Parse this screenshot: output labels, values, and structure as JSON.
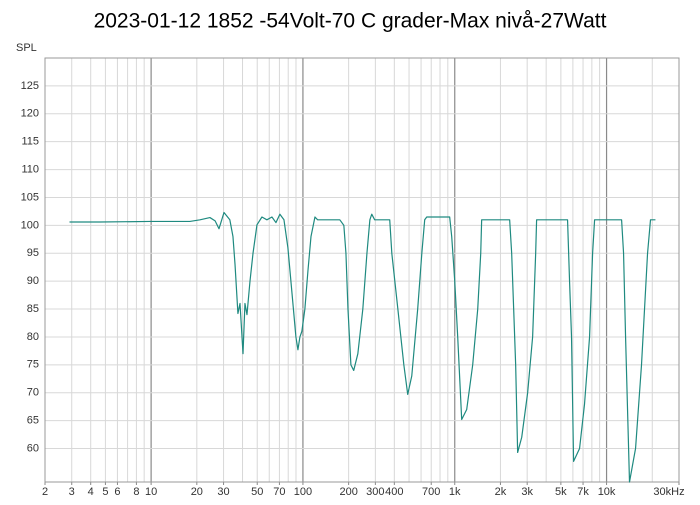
{
  "chart_data": {
    "type": "line",
    "title": "2023-01-12 1852 -54Volt-70 C grader-Max nivå-27Watt",
    "y_label": "SPL",
    "log_x": true,
    "grid": true,
    "xlim": [
      2,
      30000
    ],
    "ylim": [
      54,
      130
    ],
    "xticks": [
      2,
      3,
      4,
      5,
      6,
      8,
      10,
      20,
      30,
      50,
      70,
      100,
      200,
      300,
      400,
      700,
      {
        "value": 1000,
        "label": "1k"
      },
      {
        "value": 2000,
        "label": "2k"
      },
      {
        "value": 3000,
        "label": "3k"
      },
      {
        "value": 5000,
        "label": "5k"
      },
      {
        "value": 7000,
        "label": "7k"
      },
      {
        "value": 10000,
        "label": "10k"
      },
      {
        "value": 30000,
        "label": "30kHz"
      }
    ],
    "yticks": [
      60,
      65,
      70,
      75,
      80,
      85,
      90,
      95,
      100,
      105,
      110,
      115,
      120,
      125
    ],
    "x": [
      2.9,
      4.6,
      9.8,
      18,
      21,
      24.4,
      26.4,
      28,
      30.2,
      33,
      34.6,
      35.7,
      37.3,
      38.5,
      40.3,
      41.5,
      42.8,
      44.8,
      46.9,
      49.8,
      53.7,
      57.9,
      62.5,
      66.4,
      70.5,
      75,
      79.6,
      84.6,
      89.9,
      92.7,
      95.5,
      98.4,
      103,
      108,
      113,
      120,
      125,
      150,
      175,
      186,
      192,
      198,
      207,
      216,
      230,
      248,
      264,
      276,
      284,
      297,
      373,
      385,
      422,
      462,
      490,
      521,
      570,
      607,
      634,
      654,
      926,
      955,
      1000,
      1046,
      1111,
      1199,
      1313,
      1417,
      1483,
      1504,
      2300,
      2371,
      2444,
      2519,
      2596,
      2761,
      3021,
      3258,
      3412,
      3461,
      5534,
      5704,
      5877,
      6064,
      6639,
      7160,
      7727,
      8091,
      8339,
      12560,
      12940,
      13340,
      14160,
      15520,
      16990,
      18620,
      19470,
      20990
    ],
    "series": [
      {
        "name": "SPL",
        "color": "#1f8a80",
        "values": [
          100.6,
          100.6,
          100.7,
          100.7,
          101,
          101.4,
          100.8,
          99.4,
          102.3,
          101,
          98,
          93,
          84.2,
          86,
          77,
          86,
          84,
          90,
          95,
          100.1,
          101.5,
          101,
          101.5,
          100.5,
          102,
          101,
          96,
          88,
          80,
          77.7,
          80,
          81,
          85,
          92,
          98,
          101.5,
          101,
          101,
          101,
          100,
          95,
          85,
          75,
          74,
          77,
          85,
          95,
          101,
          102,
          101,
          101,
          95,
          85,
          75,
          69.7,
          73,
          85,
          95,
          101,
          101.5,
          101.5,
          98,
          90,
          80,
          65.2,
          67,
          75,
          85,
          95,
          101,
          101,
          95,
          85,
          75,
          59.3,
          62,
          70,
          80,
          95,
          101,
          101,
          90,
          80,
          57.7,
          60,
          68,
          80,
          95,
          101,
          101,
          95,
          80,
          54,
          60,
          75,
          95,
          101,
          101
        ]
      }
    ]
  }
}
